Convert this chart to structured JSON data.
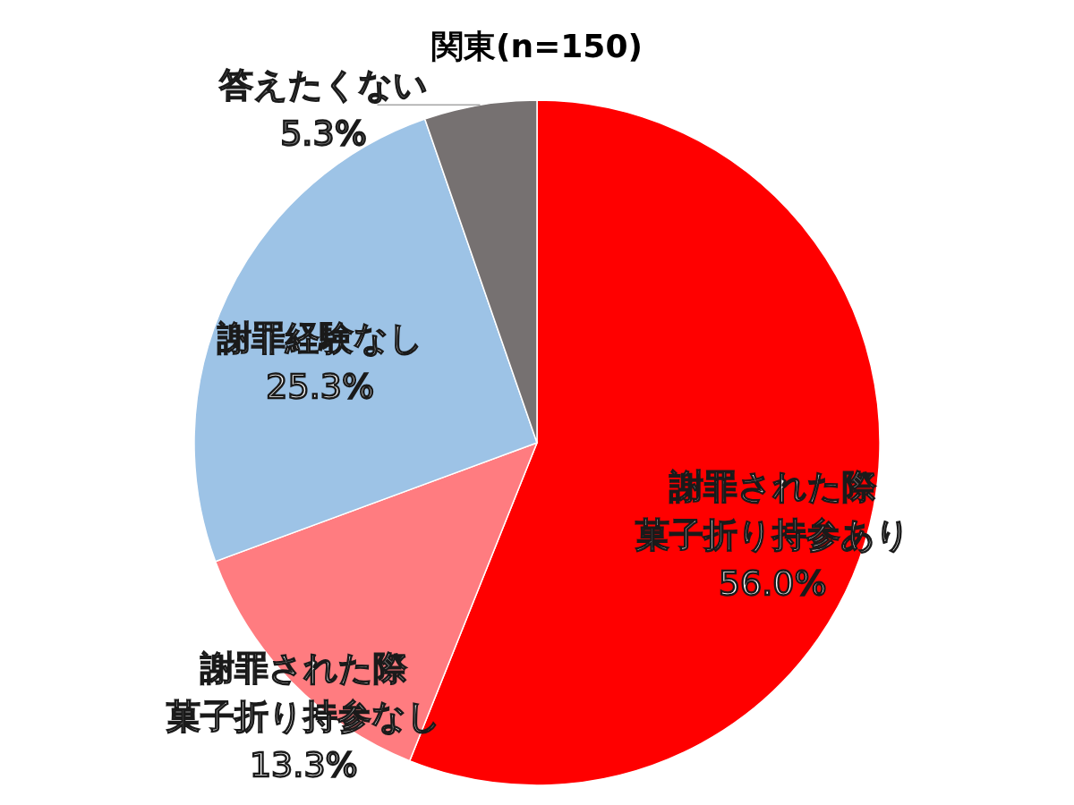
{
  "chart_data": {
    "type": "pie",
    "title": "関東(n=150)",
    "categories": [
      "謝罪された際菓子折り持参あり",
      "謝罪された際菓子折り持参なし",
      "謝罪経験なし",
      "答えたくない"
    ],
    "values": [
      56.0,
      13.3,
      25.3,
      5.3
    ],
    "colors": [
      "#ff0000",
      "#ff7c80",
      "#9dc3e6",
      "#767171"
    ],
    "value_labels": [
      "56.0%",
      "13.3%",
      "25.3%",
      "5.3%"
    ]
  }
}
